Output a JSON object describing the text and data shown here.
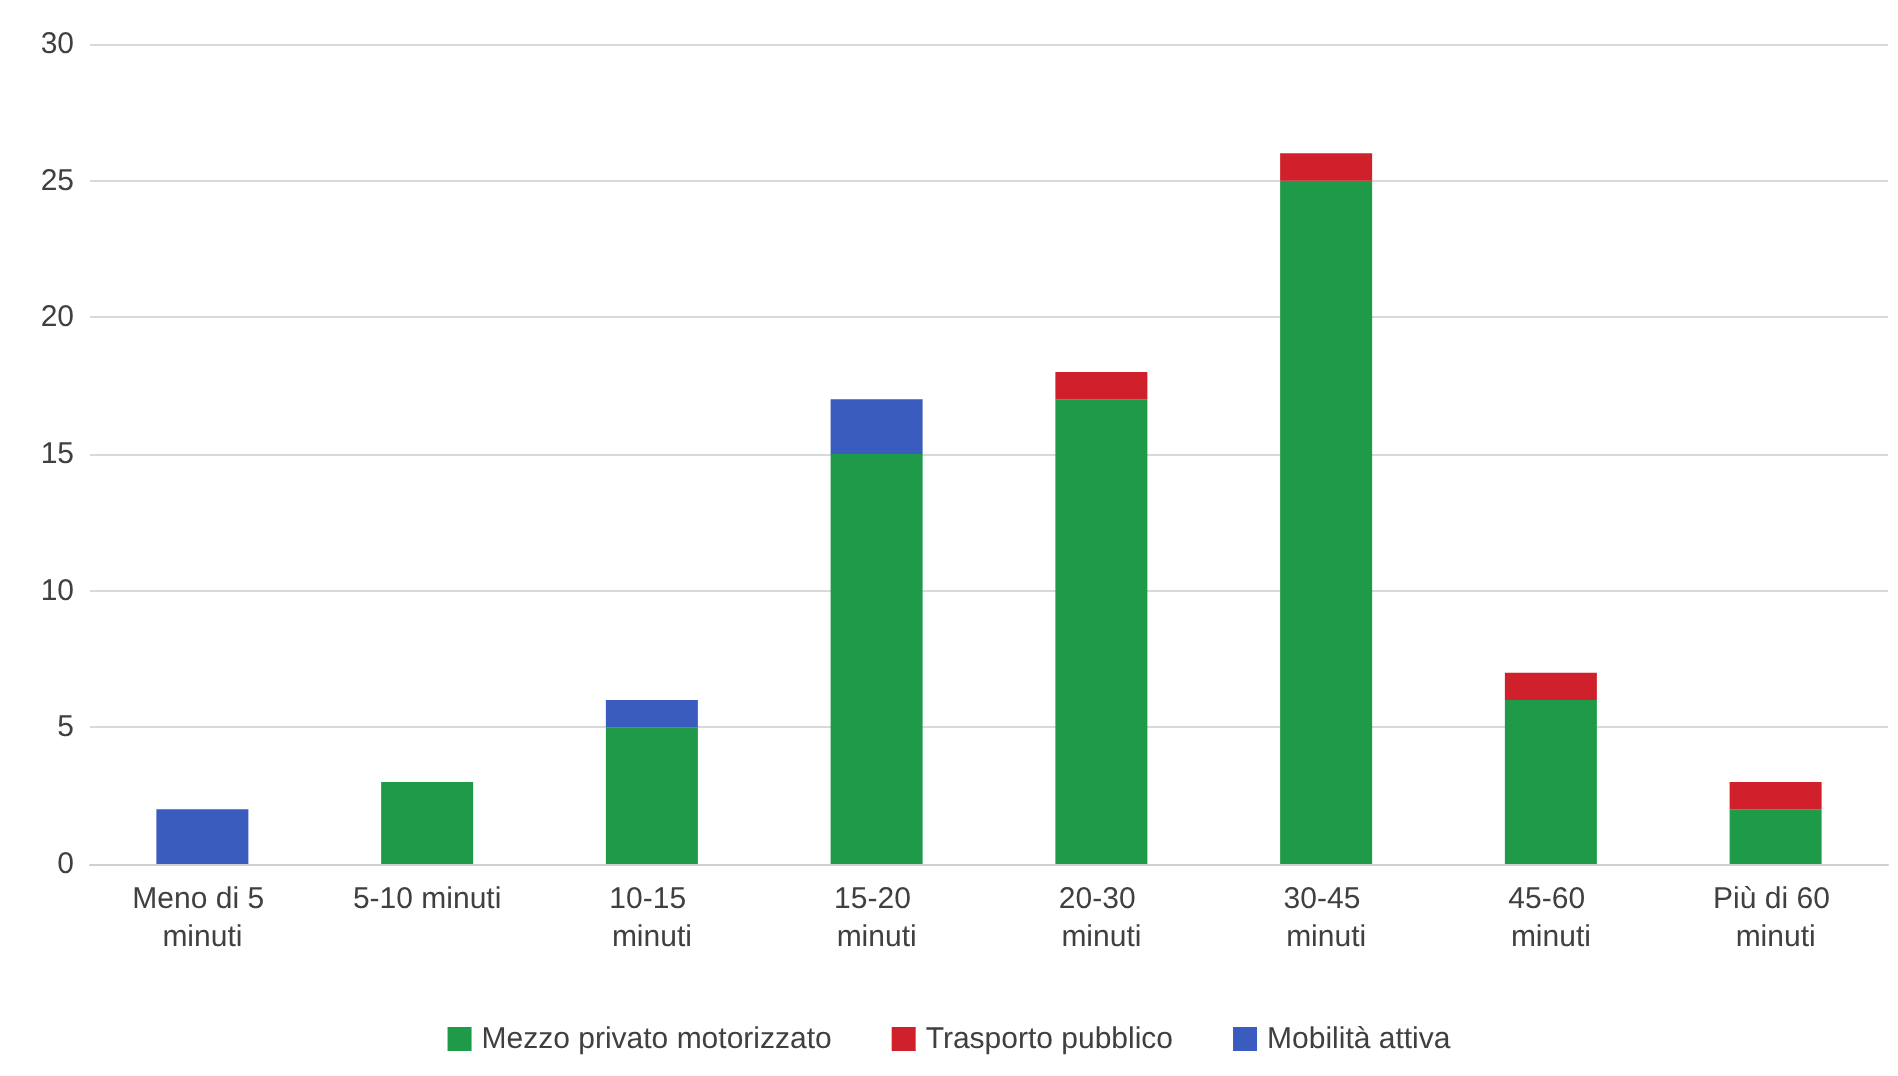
{
  "chart_data": {
    "type": "bar",
    "stacked": true,
    "categories": [
      "Meno di 5 minuti",
      "5-10 minuti",
      "10-15 minuti",
      "15-20 minuti",
      "20-30 minuti",
      "30-45 minuti",
      "45-60 minuti",
      "Più di 60 minuti"
    ],
    "series": [
      {
        "name": "Mezzo privato motorizzato",
        "color": "#1e9a48",
        "values": [
          0,
          3,
          5,
          15,
          17,
          25,
          6,
          2
        ]
      },
      {
        "name": "Trasporto pubblico",
        "color": "#d0202c",
        "values": [
          0,
          0,
          0,
          0,
          1,
          1,
          1,
          1
        ]
      },
      {
        "name": "Mobilità attiva",
        "color": "#3a5cbf",
        "values": [
          2,
          0,
          1,
          2,
          0,
          0,
          0,
          0
        ]
      }
    ],
    "ylim": [
      0,
      30
    ],
    "yticks": [
      0,
      5,
      10,
      15,
      20,
      25,
      30
    ],
    "grid": "y",
    "legend": "bottom"
  }
}
